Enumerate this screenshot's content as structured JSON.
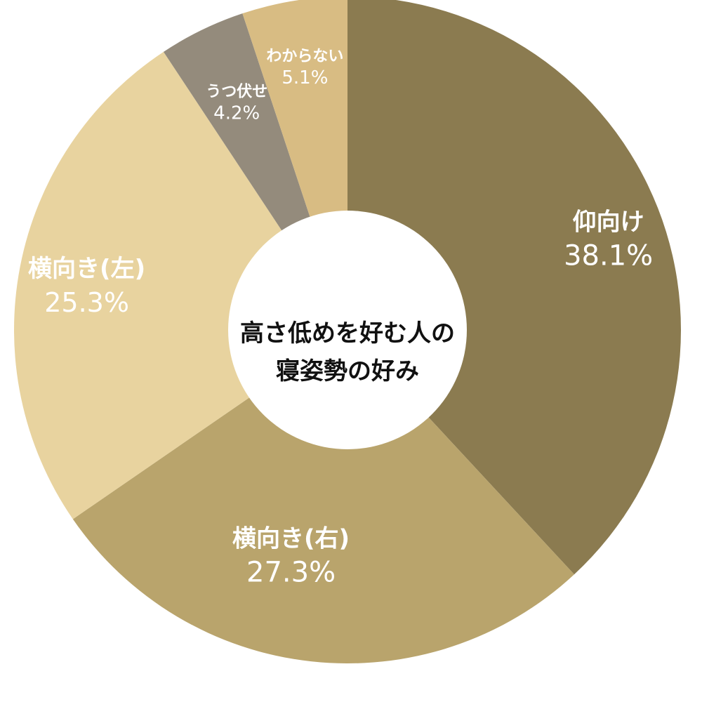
{
  "chart_data": {
    "type": "pie",
    "variant": "donut",
    "title": "高さ低めを好む人の寝姿勢の好み",
    "title_lines": [
      "高さ低めを好む人の",
      "寝姿勢の好み"
    ],
    "legend": "none",
    "slices": [
      {
        "label": "仰向け",
        "value": 38.1,
        "value_label": "38.1%",
        "color": "#8b7b50"
      },
      {
        "label": "横向き(右)",
        "value": 27.3,
        "value_label": "27.3%",
        "color": "#b9a46c"
      },
      {
        "label": "横向き(左)",
        "value": 25.3,
        "value_label": "25.3%",
        "color": "#e8d39f"
      },
      {
        "label": "うつ伏せ",
        "value": 4.2,
        "value_label": "4.2%",
        "color": "#948b7c"
      },
      {
        "label": "わからない",
        "value": 5.1,
        "value_label": "5.1%",
        "color": "#d8bc83"
      }
    ]
  }
}
